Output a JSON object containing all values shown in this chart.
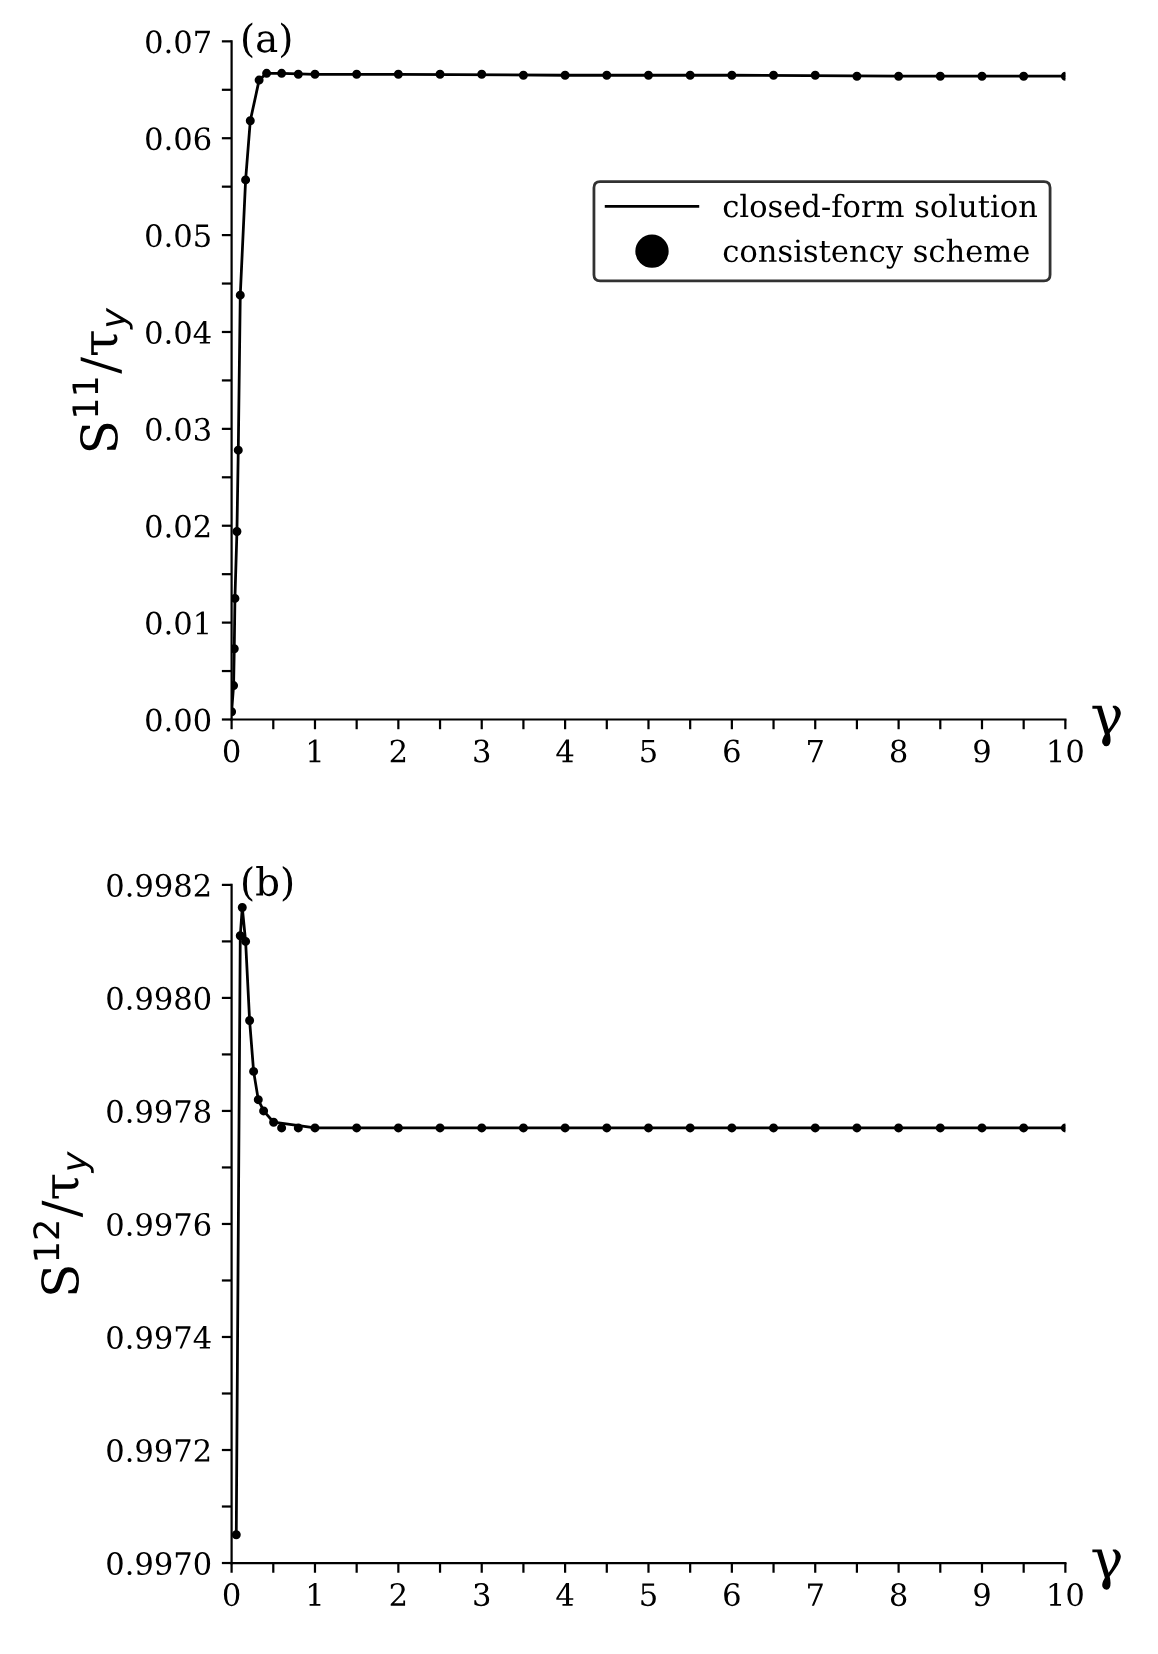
{
  "chart_data": [
    {
      "type": "line",
      "annotations": [
        "(a)"
      ],
      "ylabel": "S$^{11}$/τ$_{y}$",
      "xlabel": "γ",
      "xlim": [
        0,
        10
      ],
      "ylim": [
        0,
        0.07
      ],
      "xticks": [
        0,
        {
          "value": 0.5,
          "label": null
        },
        1,
        {
          "value": 1.5,
          "label": null
        },
        2,
        {
          "value": 2.5,
          "label": null
        },
        3,
        {
          "value": 3.5,
          "label": null
        },
        4,
        {
          "value": 4.5,
          "label": null
        },
        5,
        {
          "value": 5.5,
          "label": null
        },
        6,
        {
          "value": 6.5,
          "label": null
        },
        7,
        {
          "value": 7.5,
          "label": null
        },
        8,
        {
          "value": 8.5,
          "label": null
        },
        9,
        {
          "value": 9.5,
          "label": null
        },
        10
      ],
      "yticks": [
        {
          "value": 0,
          "label": "0.00"
        },
        {
          "value": 0.005,
          "label": null
        },
        {
          "value": 0.01,
          "label": "0.01"
        },
        {
          "value": 0.015,
          "label": null
        },
        {
          "value": 0.02,
          "label": "0.02"
        },
        {
          "value": 0.025,
          "label": null
        },
        {
          "value": 0.03,
          "label": "0.03"
        },
        {
          "value": 0.035,
          "label": null
        },
        {
          "value": 0.04,
          "label": "0.04"
        },
        {
          "value": 0.045,
          "label": null
        },
        {
          "value": 0.05,
          "label": "0.05"
        },
        {
          "value": 0.055,
          "label": null
        },
        {
          "value": 0.06,
          "label": "0.06"
        },
        {
          "value": 0.065,
          "label": null
        },
        {
          "value": 0.07,
          "label": "0.07"
        }
      ],
      "grid": false,
      "legend": "right",
      "series": [
        {
          "name": "closed-form solution",
          "color": "#000000",
          "marker": "none",
          "line_style": "solid",
          "x": [
            0,
            0.024,
            0.032,
            0.04,
            0.064,
            0.08,
            0.104,
            0.168,
            0.224,
            0.33,
            0.42,
            0.6,
            1,
            2,
            4,
            6,
            8,
            10
          ],
          "values": [
            0.0008,
            0.0035,
            0.0073,
            0.0125,
            0.0194,
            0.0278,
            0.0438,
            0.0557,
            0.0618,
            0.066,
            0.0667,
            0.0667,
            0.0666,
            0.0666,
            0.0665,
            0.0665,
            0.0664,
            0.0664
          ]
        },
        {
          "name": "consistency scheme",
          "type": "scatter",
          "color": "#000000",
          "marker": "circle",
          "x": [
            0,
            0.024,
            0.032,
            0.04,
            0.064,
            0.08,
            0.104,
            0.168,
            0.224,
            0.33,
            0.42,
            0.6,
            0.8,
            1,
            1.5,
            2,
            2.5,
            3,
            3.5,
            4,
            4.5,
            5,
            5.5,
            6,
            6.5,
            7,
            7.5,
            8,
            8.5,
            9,
            9.5,
            10
          ],
          "values": [
            0.0008,
            0.0035,
            0.0073,
            0.0125,
            0.0194,
            0.0278,
            0.0438,
            0.0557,
            0.0618,
            0.066,
            0.0667,
            0.0667,
            0.0666,
            0.0666,
            0.0666,
            0.0666,
            0.0666,
            0.0666,
            0.0665,
            0.0665,
            0.0665,
            0.0665,
            0.0665,
            0.0665,
            0.0665,
            0.0665,
            0.0664,
            0.0664,
            0.0664,
            0.0664,
            0.0664,
            0.0664
          ]
        }
      ]
    },
    {
      "type": "line",
      "annotations": [
        "(b)"
      ],
      "ylabel": "S$^{12}$/τ$_{y}$",
      "xlabel": "γ",
      "xlim": [
        0,
        10
      ],
      "ylim": [
        0.997,
        0.9982
      ],
      "xticks": [
        0,
        {
          "value": 0.5,
          "label": null
        },
        1,
        {
          "value": 1.5,
          "label": null
        },
        2,
        {
          "value": 2.5,
          "label": null
        },
        3,
        {
          "value": 3.5,
          "label": null
        },
        4,
        {
          "value": 4.5,
          "label": null
        },
        5,
        {
          "value": 5.5,
          "label": null
        },
        6,
        {
          "value": 6.5,
          "label": null
        },
        7,
        {
          "value": 7.5,
          "label": null
        },
        8,
        {
          "value": 8.5,
          "label": null
        },
        9,
        {
          "value": 9.5,
          "label": null
        },
        10
      ],
      "yticks": [
        {
          "value": 0.997,
          "label": "0.9970"
        },
        {
          "value": 0.9971,
          "label": null
        },
        {
          "value": 0.9972,
          "label": "0.9972"
        },
        {
          "value": 0.9973,
          "label": null
        },
        {
          "value": 0.9974,
          "label": "0.9974"
        },
        {
          "value": 0.9975,
          "label": null
        },
        {
          "value": 0.9976,
          "label": "0.9976"
        },
        {
          "value": 0.9977,
          "label": null
        },
        {
          "value": 0.9978,
          "label": "0.9978"
        },
        {
          "value": 0.9979,
          "label": null
        },
        {
          "value": 0.998,
          "label": "0.9980"
        },
        {
          "value": 0.9981,
          "label": null
        },
        {
          "value": 0.9982,
          "label": "0.9982"
        }
      ],
      "grid": false,
      "legend": false,
      "series": [
        {
          "color": "#000000",
          "marker": "none",
          "line_style": "solid",
          "x": [
            0.056,
            0.104,
            0.128,
            0.168,
            0.216,
            0.264,
            0.32,
            0.384,
            0.504,
            1,
            2,
            4,
            6,
            8,
            10
          ],
          "values": [
            0.99705,
            0.99811,
            0.99816,
            0.9981,
            0.99796,
            0.99787,
            0.99782,
            0.9978,
            0.99778,
            0.99777,
            0.99777,
            0.99777,
            0.99777,
            0.99777,
            0.99777
          ]
        },
        {
          "type": "scatter",
          "color": "#000000",
          "marker": "circle",
          "x": [
            0.056,
            0.104,
            0.128,
            0.168,
            0.216,
            0.264,
            0.32,
            0.384,
            0.504,
            0.6,
            0.8,
            1,
            1.5,
            2,
            2.5,
            3,
            3.5,
            4,
            4.5,
            5,
            5.5,
            6,
            6.5,
            7,
            7.5,
            8,
            8.5,
            9,
            9.5,
            10
          ],
          "values": [
            0.99705,
            0.99811,
            0.99816,
            0.9981,
            0.99796,
            0.99787,
            0.99782,
            0.9978,
            0.99778,
            0.99777,
            0.99777,
            0.99777,
            0.99777,
            0.99777,
            0.99777,
            0.99777,
            0.99777,
            0.99777,
            0.99777,
            0.99777,
            0.99777,
            0.99777,
            0.99777,
            0.99777,
            0.99777,
            0.99777,
            0.99777,
            0.99777,
            0.99777,
            0.99777
          ]
        }
      ]
    }
  ]
}
